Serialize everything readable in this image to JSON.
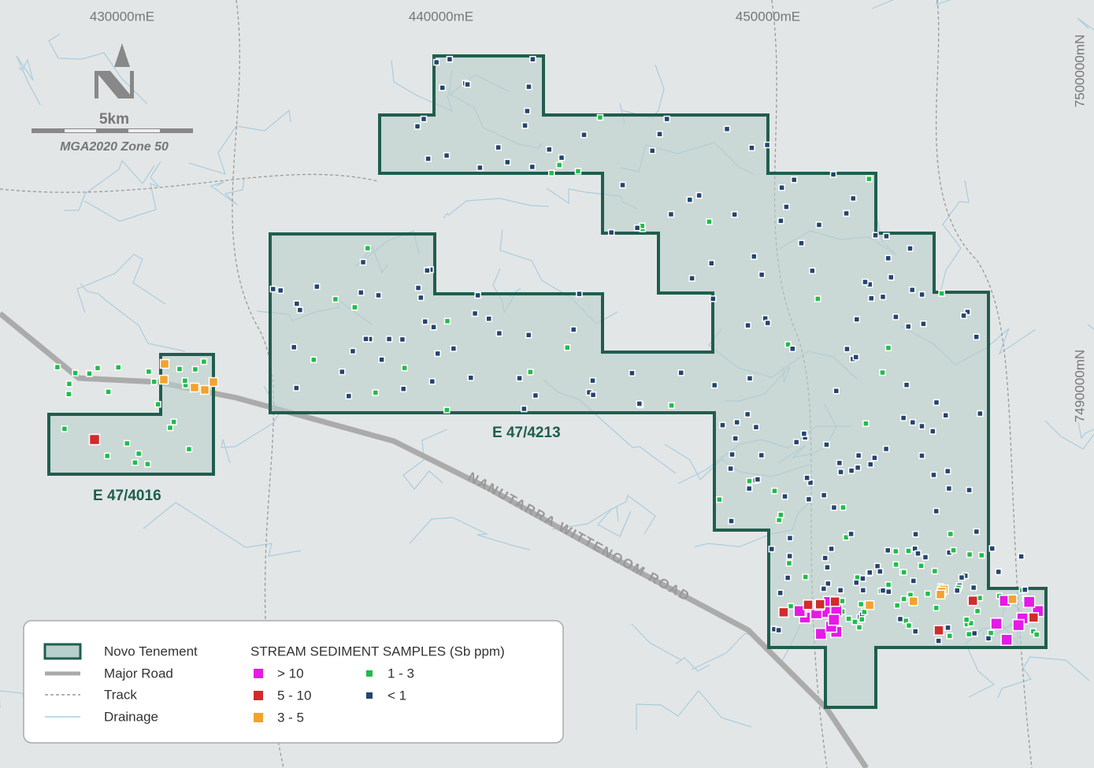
{
  "grid": {
    "eastings": [
      "430000mE",
      "440000mE",
      "450000mE"
    ],
    "northings": [
      "7500000mN",
      "7490000mN"
    ]
  },
  "scale": {
    "distance": "5km",
    "projection": "MGA2020 Zone 50"
  },
  "tenements": [
    "E 47/4016",
    "E 47/4213"
  ],
  "road": "NANUTARRA WITTENOOM ROAD",
  "legend": {
    "items": [
      "Novo Tenement",
      "Major Road",
      "Track",
      "Drainage"
    ],
    "samples_title": "STREAM SEDIMENT SAMPLES (Sb ppm)",
    "classes": [
      "> 10",
      "5 - 10",
      "3 - 5",
      "1 - 3",
      "< 1"
    ]
  }
}
